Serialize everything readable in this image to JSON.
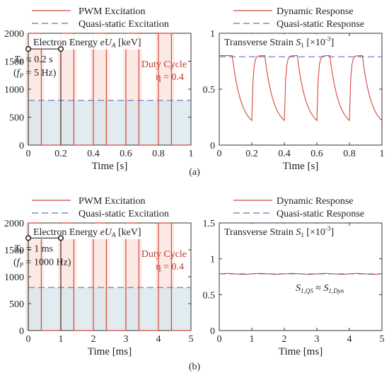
{
  "colors": {
    "pwm": "#d2473c",
    "quasi": "#6b6fb5",
    "fill_pulse": "#fbe3dd",
    "fill_quasi": "#d7e5ec",
    "axis": "#333333",
    "annotation_red": "#c0392b"
  },
  "panel_labels": [
    "(a)",
    "(b)"
  ],
  "chart_data": [
    {
      "id": "a-left",
      "type": "line",
      "title": "Electron Energy eU_A [keV]",
      "title_parts": [
        "Electron Energy ",
        "eU",
        "A",
        " [keV]"
      ],
      "xlabel": "Time [s]",
      "ylabel": "",
      "xlim": [
        0,
        1
      ],
      "ylim": [
        0,
        2000
      ],
      "xticks": [
        "0",
        "0.2",
        "0.4",
        "0.6",
        "0.8",
        "1"
      ],
      "yticks": [
        "0",
        "500",
        "1000",
        "1500",
        "2000"
      ],
      "legend": [
        "PWM Excitation",
        "Quasi-static Excitation"
      ],
      "series": [
        {
          "name": "PWM Excitation",
          "style": "pulse",
          "period": 0.2,
          "duty": 0.4,
          "high": 2000,
          "low": 0
        },
        {
          "name": "Quasi-static Excitation",
          "style": "dashed",
          "value": 800
        }
      ],
      "annotations": {
        "period_main": "T_P = 0.2 s",
        "period_parts": [
          "T",
          "P",
          " = 0.2 s"
        ],
        "freq_parts": [
          "(",
          "f",
          "P",
          " = 5 Hz)"
        ],
        "period_from": 0,
        "period_to": 0.2,
        "period_y": 1720,
        "duty_line1": "Duty Cycle",
        "duty_line2": "η = 0.4"
      }
    },
    {
      "id": "a-right",
      "type": "line",
      "title": "Transverse Strain S_1 [×10^-3]",
      "title_parts": [
        "Transverse Strain ",
        "S",
        "1",
        " [×10",
        "-3",
        "]"
      ],
      "xlabel": "Time [s]",
      "ylabel": "",
      "xlim": [
        0,
        1
      ],
      "ylim": [
        0,
        1
      ],
      "xticks": [
        "0",
        "0.2",
        "0.4",
        "0.6",
        "0.8",
        "1"
      ],
      "yticks": [
        "0",
        "0.5",
        "1"
      ],
      "legend": [
        "Dynamic Response",
        "Quasi-static Response"
      ],
      "series": [
        {
          "name": "Dynamic Response",
          "style": "relax",
          "period": 0.2,
          "duty": 0.4,
          "high": 0.8,
          "low": 0.22,
          "tau": 0.08
        },
        {
          "name": "Quasi-static Response",
          "style": "dashed",
          "value": 0.79
        }
      ]
    },
    {
      "id": "b-left",
      "type": "line",
      "title": "Electron Energy eU_A [keV]",
      "title_parts": [
        "Electron Energy ",
        "eU",
        "A",
        " [keV]"
      ],
      "xlabel": "Time [ms]",
      "ylabel": "",
      "xlim": [
        0,
        5
      ],
      "ylim": [
        0,
        2000
      ],
      "xticks": [
        "0",
        "1",
        "2",
        "3",
        "4",
        "5"
      ],
      "yticks": [
        "0",
        "500",
        "1000",
        "1500",
        "2000"
      ],
      "legend": [
        "PWM Excitation",
        "Quasi-static Excitation"
      ],
      "series": [
        {
          "name": "PWM Excitation",
          "style": "pulse",
          "period": 1,
          "duty": 0.4,
          "high": 2000,
          "low": 0
        },
        {
          "name": "Quasi-static Excitation",
          "style": "dashed",
          "value": 800
        }
      ],
      "annotations": {
        "period_main": "T_P = 1 ms",
        "period_parts": [
          "T",
          "P",
          " = 1 ms"
        ],
        "freq_parts": [
          "(",
          "f",
          "P",
          " = 1000 Hz)"
        ],
        "period_from": 0,
        "period_to": 1,
        "period_y": 1720,
        "duty_line1": "Duty Cycle",
        "duty_line2": "η = 0.4"
      }
    },
    {
      "id": "b-right",
      "type": "line",
      "title": "Transverse Strain S_1 [×10^-3]",
      "title_parts": [
        "Transverse Strain ",
        "S",
        "1",
        " [×10",
        "-3",
        "]"
      ],
      "xlabel": "Time [ms]",
      "ylabel": "",
      "xlim": [
        0,
        5
      ],
      "ylim": [
        0,
        1.5
      ],
      "xticks": [
        "0",
        "1",
        "2",
        "3",
        "4",
        "5"
      ],
      "yticks": [
        "0",
        "0.5",
        "1",
        "1.5"
      ],
      "legend": [
        "Dynamic Response",
        "Quasi-static Response"
      ],
      "series": [
        {
          "name": "Dynamic Response",
          "style": "ripple",
          "value": 0.79,
          "period": 1,
          "amplitude": 0.006
        },
        {
          "name": "Quasi-static Response",
          "style": "dashed",
          "value": 0.79
        }
      ],
      "annotations": {
        "equation": "S_1,QS ≈ S_1,Dyn",
        "equation_parts": [
          "S",
          "1,QS",
          " ≈ ",
          "S",
          "1,Dyn"
        ]
      }
    }
  ]
}
